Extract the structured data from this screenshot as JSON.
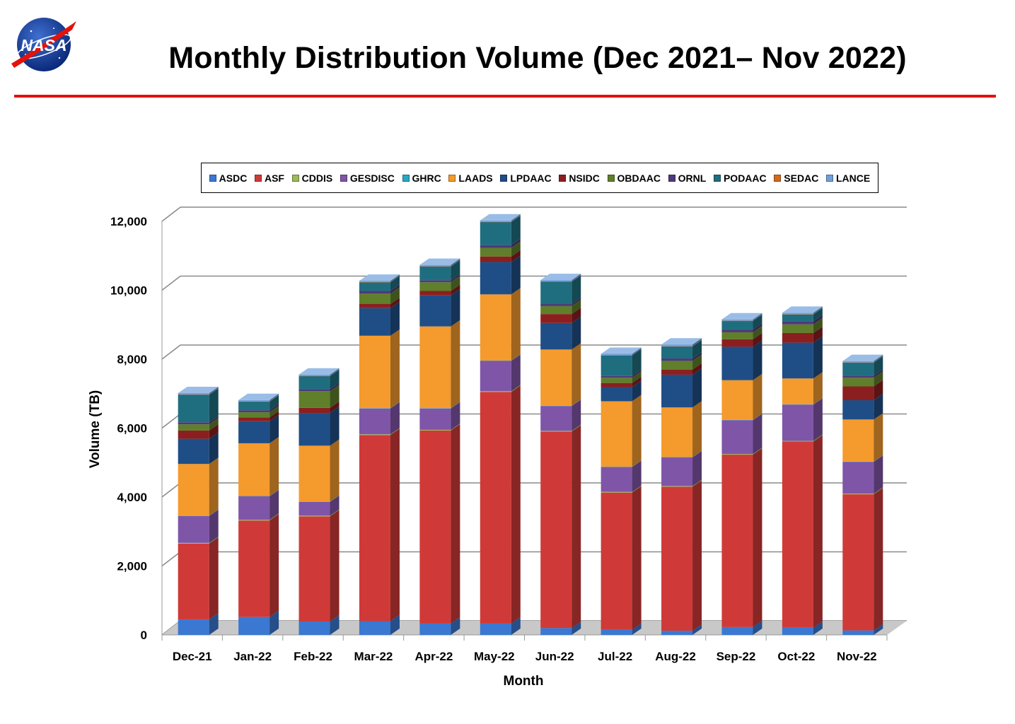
{
  "header": {
    "title": "Monthly Distribution Volume (Dec 2021– Nov 2022)",
    "logo_text": "NASA"
  },
  "chart_data": {
    "type": "bar",
    "stacked": true,
    "style": "3d",
    "title": "Monthly Distribution Volume (Dec 2021– Nov 2022)",
    "xlabel": "Month",
    "ylabel": "Volume (TB)",
    "ylim": [
      0,
      12000
    ],
    "y_ticks": [
      0,
      2000,
      4000,
      6000,
      8000,
      10000,
      12000
    ],
    "y_tick_labels": [
      "0",
      "2,000",
      "4,000",
      "6,000",
      "8,000",
      "10,000",
      "12,000"
    ],
    "grid": true,
    "legend_position": "top",
    "categories": [
      "Dec-21",
      "Jan-22",
      "Feb-22",
      "Mar-22",
      "Apr-22",
      "May-22",
      "Jun-22",
      "Jul-22",
      "Aug-22",
      "Sep-22",
      "Oct-22",
      "Nov-22"
    ],
    "series": [
      {
        "name": "ASDC",
        "color": "#3a78d2",
        "values": [
          450,
          520,
          390,
          400,
          330,
          330,
          200,
          150,
          120,
          230,
          210,
          130
        ]
      },
      {
        "name": "ASF",
        "color": "#cf3a38",
        "values": [
          2200,
          2800,
          3050,
          5400,
          5600,
          6720,
          5700,
          3980,
          4180,
          5000,
          5400,
          3950
        ]
      },
      {
        "name": "CDDIS",
        "color": "#9bbb59",
        "values": [
          20,
          20,
          20,
          20,
          20,
          20,
          20,
          20,
          20,
          20,
          20,
          20
        ]
      },
      {
        "name": "GESDISC",
        "color": "#7f55a8",
        "values": [
          780,
          680,
          400,
          750,
          620,
          880,
          720,
          720,
          830,
          980,
          1050,
          920
        ]
      },
      {
        "name": "GHRC",
        "color": "#28a7c5",
        "values": [
          10,
          10,
          10,
          10,
          10,
          10,
          10,
          10,
          10,
          10,
          10,
          10
        ]
      },
      {
        "name": "LAADS",
        "color": "#f59a2c",
        "values": [
          1500,
          1530,
          1620,
          2100,
          2370,
          1920,
          1630,
          1900,
          1440,
          1150,
          750,
          1220
        ]
      },
      {
        "name": "LPDAAC",
        "color": "#1f4e86",
        "values": [
          730,
          640,
          950,
          800,
          900,
          940,
          770,
          410,
          950,
          970,
          1040,
          560
        ]
      },
      {
        "name": "NSIDC",
        "color": "#8b1f1f",
        "values": [
          240,
          110,
          150,
          120,
          130,
          160,
          260,
          120,
          150,
          220,
          280,
          400
        ]
      },
      {
        "name": "OBDAAC",
        "color": "#5f7f2b",
        "values": [
          180,
          150,
          480,
          300,
          250,
          250,
          230,
          150,
          250,
          200,
          250,
          250
        ]
      },
      {
        "name": "ORNL",
        "color": "#4e3a7a",
        "values": [
          60,
          60,
          60,
          80,
          60,
          80,
          60,
          50,
          70,
          80,
          90,
          60
        ]
      },
      {
        "name": "PODAAC",
        "color": "#1f6e80",
        "values": [
          800,
          250,
          380,
          250,
          400,
          670,
          650,
          600,
          350,
          250,
          200,
          380
        ]
      },
      {
        "name": "SEDAC",
        "color": "#d2691e",
        "values": [
          5,
          5,
          5,
          5,
          5,
          5,
          5,
          5,
          5,
          5,
          5,
          5
        ]
      },
      {
        "name": "LANCE",
        "color": "#6fa0dc",
        "values": [
          40,
          40,
          40,
          40,
          40,
          40,
          40,
          40,
          50,
          40,
          40,
          40
        ]
      }
    ]
  }
}
